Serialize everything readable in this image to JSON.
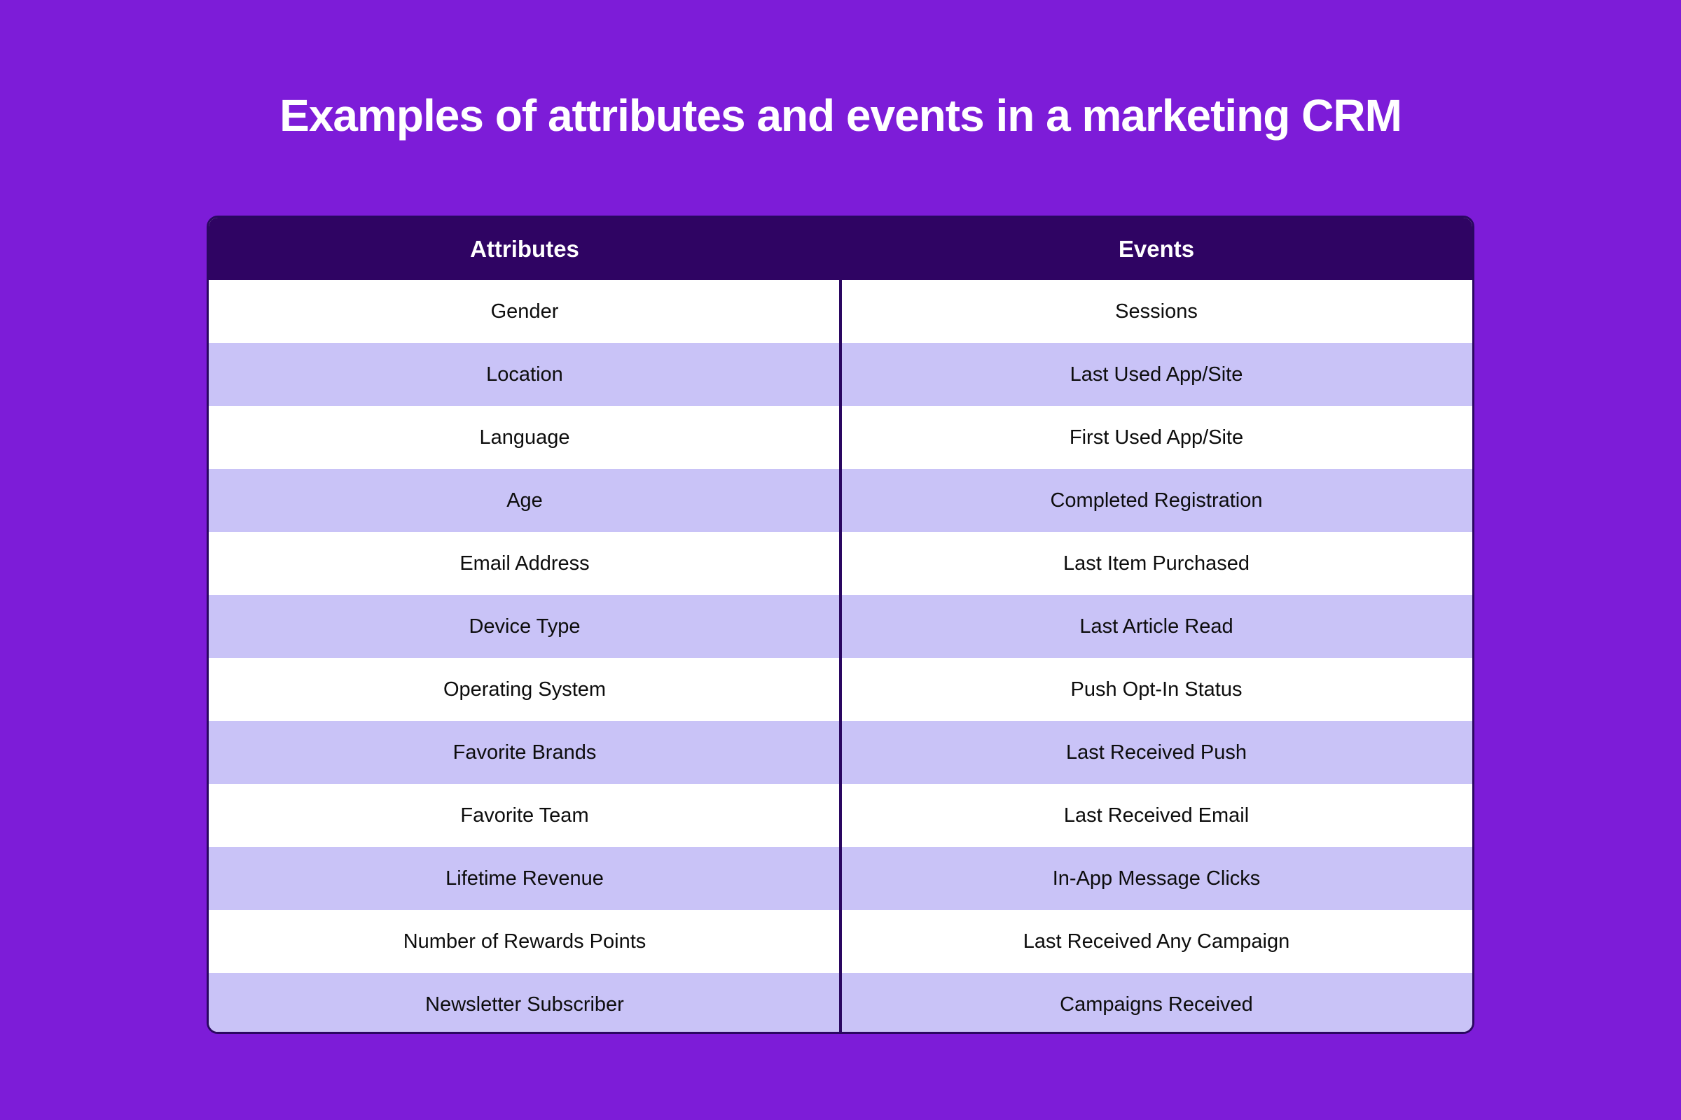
{
  "title": "Examples of attributes and events in a marketing CRM",
  "colors": {
    "background": "#7D1CD8",
    "header_bg": "#2F0463",
    "row_alt_bg": "#C9C3F7",
    "row_bg": "#FFFFFF",
    "border_color": "#2A0761",
    "title_color": "#FFFFFF",
    "cell_text": "#0D0D0D"
  },
  "table": {
    "header": {
      "attributes": "Attributes",
      "events": "Events"
    },
    "rows": [
      {
        "attribute": "Gender",
        "event": "Sessions"
      },
      {
        "attribute": "Location",
        "event": "Last Used App/Site"
      },
      {
        "attribute": "Language",
        "event": "First Used App/Site"
      },
      {
        "attribute": "Age",
        "event": "Completed Registration"
      },
      {
        "attribute": "Email Address",
        "event": "Last Item Purchased"
      },
      {
        "attribute": "Device Type",
        "event": "Last Article Read"
      },
      {
        "attribute": "Operating System",
        "event": "Push Opt-In Status"
      },
      {
        "attribute": "Favorite Brands",
        "event": "Last Received Push"
      },
      {
        "attribute": "Favorite Team",
        "event": "Last Received Email"
      },
      {
        "attribute": "Lifetime Revenue",
        "event": "In-App Message Clicks"
      },
      {
        "attribute": "Number of Rewards Points",
        "event": "Last Received Any Campaign"
      },
      {
        "attribute": "Newsletter Subscriber",
        "event": "Campaigns Received"
      }
    ]
  },
  "chart_data": {
    "type": "table",
    "title": "Examples of attributes and events in a marketing CRM",
    "columns": [
      "Attributes",
      "Events"
    ],
    "rows": [
      [
        "Gender",
        "Sessions"
      ],
      [
        "Location",
        "Last Used App/Site"
      ],
      [
        "Language",
        "First Used App/Site"
      ],
      [
        "Age",
        "Completed Registration"
      ],
      [
        "Email Address",
        "Last Item Purchased"
      ],
      [
        "Device Type",
        "Last Article Read"
      ],
      [
        "Operating System",
        "Push Opt-In Status"
      ],
      [
        "Favorite Brands",
        "Last Received Push"
      ],
      [
        "Favorite Team",
        "Last Received Email"
      ],
      [
        "Lifetime Revenue",
        "In-App Message Clicks"
      ],
      [
        "Number of Rewards Points",
        "Last Received Any Campaign"
      ],
      [
        "Newsletter Subscriber",
        "Campaigns Received"
      ]
    ],
    "layout": {
      "header_style": "dark-purple bar, white bold text",
      "row_striping": "white / lavender alternating starting with white",
      "column_divider": "dark vertical rule between columns, body only",
      "legend": "none",
      "grid": "off"
    }
  }
}
